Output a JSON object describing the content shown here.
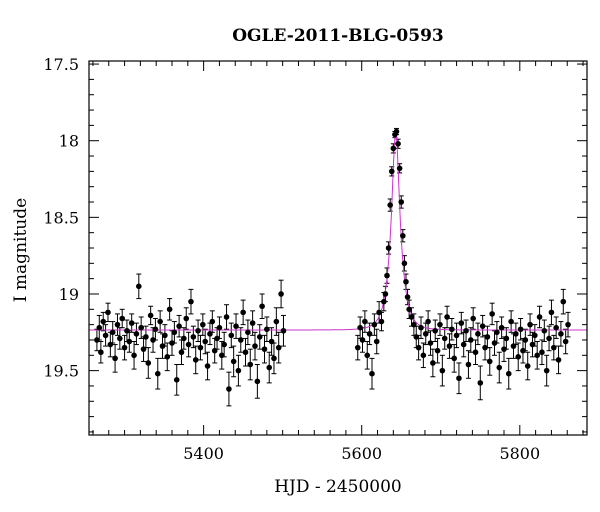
{
  "chart_data": {
    "type": "scatter",
    "title": "OGLE-2011-BLG-0593",
    "xlabel": "HJD - 2450000",
    "ylabel": "I magnitude",
    "xlim": [
      5255,
      5885
    ],
    "ylim": [
      19.92,
      17.48
    ],
    "y_inverted": true,
    "xticks": [
      5400,
      5600,
      5800
    ],
    "xtick_labels": [
      "5400",
      "5600",
      "5800"
    ],
    "yticks": [
      17.5,
      18,
      18.5,
      19,
      19.5
    ],
    "ytick_labels": [
      "17.5",
      "18",
      "18.5",
      "19",
      "19.5"
    ],
    "grid": false,
    "colors": {
      "data": "#000000",
      "model": "#cc33cc",
      "frame": "#000000"
    },
    "series": [
      {
        "kind": "points_with_errorbars",
        "points": [
          [
            5265,
            19.3,
            0.07
          ],
          [
            5268,
            19.22,
            0.08
          ],
          [
            5270,
            19.38,
            0.07
          ],
          [
            5273,
            19.18,
            0.06
          ],
          [
            5276,
            19.27,
            0.07
          ],
          [
            5279,
            19.12,
            0.06
          ],
          [
            5282,
            19.33,
            0.08
          ],
          [
            5285,
            19.25,
            0.07
          ],
          [
            5288,
            19.42,
            0.09
          ],
          [
            5291,
            19.2,
            0.07
          ],
          [
            5294,
            19.29,
            0.07
          ],
          [
            5297,
            19.16,
            0.06
          ],
          [
            5300,
            19.35,
            0.08
          ],
          [
            5303,
            19.24,
            0.07
          ],
          [
            5306,
            19.31,
            0.07
          ],
          [
            5309,
            19.19,
            0.06
          ],
          [
            5312,
            19.4,
            0.09
          ],
          [
            5315,
            19.26,
            0.07
          ],
          [
            5318,
            18.95,
            0.08
          ],
          [
            5321,
            19.22,
            0.07
          ],
          [
            5324,
            19.36,
            0.08
          ],
          [
            5327,
            19.28,
            0.07
          ],
          [
            5330,
            19.45,
            0.1
          ],
          [
            5333,
            19.14,
            0.06
          ],
          [
            5336,
            19.3,
            0.08
          ],
          [
            5339,
            19.23,
            0.07
          ],
          [
            5342,
            19.52,
            0.1
          ],
          [
            5345,
            19.18,
            0.07
          ],
          [
            5348,
            19.34,
            0.08
          ],
          [
            5351,
            19.27,
            0.07
          ],
          [
            5354,
            19.41,
            0.09
          ],
          [
            5357,
            19.1,
            0.07
          ],
          [
            5360,
            19.32,
            0.08
          ],
          [
            5363,
            19.25,
            0.07
          ],
          [
            5366,
            19.56,
            0.1
          ],
          [
            5369,
            19.21,
            0.07
          ],
          [
            5372,
            19.38,
            0.08
          ],
          [
            5375,
            19.29,
            0.07
          ],
          [
            5378,
            19.16,
            0.07
          ],
          [
            5381,
            19.33,
            0.08
          ],
          [
            5384,
            19.05,
            0.08
          ],
          [
            5387,
            19.28,
            0.07
          ],
          [
            5390,
            19.43,
            0.09
          ],
          [
            5393,
            19.24,
            0.07
          ],
          [
            5396,
            19.35,
            0.08
          ],
          [
            5399,
            19.2,
            0.07
          ],
          [
            5402,
            19.31,
            0.08
          ],
          [
            5405,
            19.47,
            0.09
          ],
          [
            5408,
            19.26,
            0.07
          ],
          [
            5411,
            19.18,
            0.07
          ],
          [
            5414,
            19.37,
            0.08
          ],
          [
            5417,
            19.29,
            0.07
          ],
          [
            5420,
            19.22,
            0.07
          ],
          [
            5423,
            19.4,
            0.09
          ],
          [
            5426,
            19.33,
            0.08
          ],
          [
            5429,
            19.15,
            0.08
          ],
          [
            5432,
            19.62,
            0.11
          ],
          [
            5435,
            19.27,
            0.08
          ],
          [
            5438,
            19.44,
            0.1
          ],
          [
            5441,
            19.21,
            0.08
          ],
          [
            5444,
            19.5,
            0.1
          ],
          [
            5447,
            19.3,
            0.08
          ],
          [
            5450,
            19.12,
            0.08
          ],
          [
            5453,
            19.38,
            0.09
          ],
          [
            5456,
            19.25,
            0.08
          ],
          [
            5459,
            19.46,
            0.1
          ],
          [
            5462,
            19.19,
            0.08
          ],
          [
            5465,
            19.34,
            0.09
          ],
          [
            5468,
            19.57,
            0.11
          ],
          [
            5471,
            19.28,
            0.08
          ],
          [
            5474,
            19.08,
            0.08
          ],
          [
            5477,
            19.36,
            0.09
          ],
          [
            5480,
            19.23,
            0.08
          ],
          [
            5483,
            19.48,
            0.1
          ],
          [
            5486,
            19.31,
            0.09
          ],
          [
            5489,
            19.42,
            0.1
          ],
          [
            5492,
            19.18,
            0.09
          ],
          [
            5495,
            19.35,
            0.1
          ],
          [
            5498,
            19.0,
            0.09
          ],
          [
            5501,
            19.24,
            0.1
          ],
          [
            5595,
            19.35,
            0.08
          ],
          [
            5598,
            19.22,
            0.07
          ],
          [
            5601,
            19.3,
            0.08
          ],
          [
            5604,
            19.18,
            0.07
          ],
          [
            5607,
            19.4,
            0.09
          ],
          [
            5610,
            19.26,
            0.07
          ],
          [
            5613,
            19.52,
            0.1
          ],
          [
            5616,
            19.2,
            0.07
          ],
          [
            5619,
            19.31,
            0.08
          ],
          [
            5622,
            19.12,
            0.07
          ],
          [
            5625,
            19.18,
            0.06
          ],
          [
            5628,
            19.05,
            0.06
          ],
          [
            5630,
            19.0,
            0.05
          ],
          [
            5632,
            18.88,
            0.05
          ],
          [
            5634,
            18.7,
            0.04
          ],
          [
            5636,
            18.42,
            0.04
          ],
          [
            5638,
            18.2,
            0.03
          ],
          [
            5640,
            18.05,
            0.03
          ],
          [
            5642,
            17.96,
            0.02
          ],
          [
            5644,
            17.94,
            0.02
          ],
          [
            5646,
            18.02,
            0.03
          ],
          [
            5648,
            18.18,
            0.03
          ],
          [
            5650,
            18.4,
            0.04
          ],
          [
            5652,
            18.62,
            0.04
          ],
          [
            5654,
            18.8,
            0.05
          ],
          [
            5656,
            18.92,
            0.05
          ],
          [
            5658,
            19.02,
            0.05
          ],
          [
            5660,
            19.1,
            0.06
          ],
          [
            5663,
            19.15,
            0.06
          ],
          [
            5666,
            19.2,
            0.07
          ],
          [
            5669,
            19.28,
            0.07
          ],
          [
            5672,
            19.35,
            0.08
          ],
          [
            5675,
            19.22,
            0.07
          ],
          [
            5678,
            19.4,
            0.08
          ],
          [
            5681,
            19.26,
            0.07
          ],
          [
            5684,
            19.18,
            0.07
          ],
          [
            5687,
            19.32,
            0.08
          ],
          [
            5690,
            19.45,
            0.09
          ],
          [
            5693,
            19.24,
            0.07
          ],
          [
            5696,
            19.37,
            0.08
          ],
          [
            5699,
            19.2,
            0.07
          ],
          [
            5702,
            19.5,
            0.1
          ],
          [
            5705,
            19.29,
            0.07
          ],
          [
            5708,
            19.15,
            0.07
          ],
          [
            5711,
            19.34,
            0.08
          ],
          [
            5714,
            19.23,
            0.07
          ],
          [
            5717,
            19.42,
            0.09
          ],
          [
            5720,
            19.27,
            0.08
          ],
          [
            5723,
            19.55,
            0.1
          ],
          [
            5726,
            19.19,
            0.07
          ],
          [
            5729,
            19.33,
            0.08
          ],
          [
            5732,
            19.24,
            0.07
          ],
          [
            5735,
            19.46,
            0.09
          ],
          [
            5738,
            19.3,
            0.08
          ],
          [
            5741,
            19.16,
            0.07
          ],
          [
            5744,
            19.38,
            0.08
          ],
          [
            5747,
            19.26,
            0.07
          ],
          [
            5750,
            19.58,
            0.11
          ],
          [
            5753,
            19.21,
            0.07
          ],
          [
            5756,
            19.35,
            0.08
          ],
          [
            5759,
            19.28,
            0.07
          ],
          [
            5762,
            19.44,
            0.09
          ],
          [
            5765,
            19.13,
            0.07
          ],
          [
            5768,
            19.32,
            0.08
          ],
          [
            5771,
            19.25,
            0.07
          ],
          [
            5774,
            19.48,
            0.1
          ],
          [
            5777,
            19.22,
            0.07
          ],
          [
            5780,
            19.36,
            0.08
          ],
          [
            5783,
            19.29,
            0.07
          ],
          [
            5786,
            19.52,
            0.1
          ],
          [
            5789,
            19.18,
            0.07
          ],
          [
            5792,
            19.34,
            0.08
          ],
          [
            5795,
            19.26,
            0.07
          ],
          [
            5798,
            19.41,
            0.09
          ],
          [
            5801,
            19.23,
            0.07
          ],
          [
            5804,
            19.37,
            0.08
          ],
          [
            5807,
            19.3,
            0.07
          ],
          [
            5810,
            19.47,
            0.09
          ],
          [
            5813,
            19.2,
            0.07
          ],
          [
            5816,
            19.33,
            0.08
          ],
          [
            5819,
            19.27,
            0.07
          ],
          [
            5822,
            19.4,
            0.09
          ],
          [
            5825,
            19.15,
            0.07
          ],
          [
            5828,
            19.38,
            0.08
          ],
          [
            5831,
            19.24,
            0.07
          ],
          [
            5834,
            19.5,
            0.1
          ],
          [
            5837,
            19.29,
            0.08
          ],
          [
            5840,
            19.12,
            0.08
          ],
          [
            5843,
            19.35,
            0.08
          ],
          [
            5846,
            19.22,
            0.07
          ],
          [
            5849,
            19.43,
            0.09
          ],
          [
            5852,
            19.26,
            0.08
          ],
          [
            5855,
            19.05,
            0.08
          ],
          [
            5858,
            19.31,
            0.08
          ],
          [
            5861,
            19.2,
            0.08
          ]
        ]
      },
      {
        "kind": "model_curve",
        "baseline": 19.235,
        "peak_mag": 17.94,
        "t0": 5643,
        "tE": 12.0
      }
    ]
  }
}
